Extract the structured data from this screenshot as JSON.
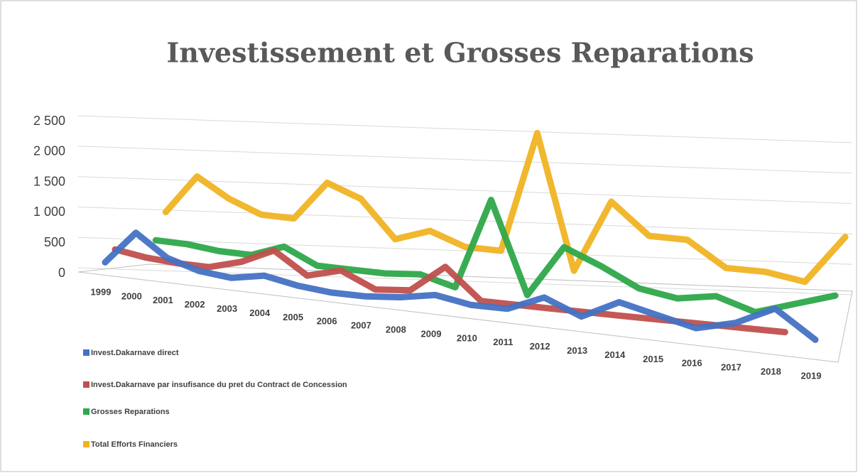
{
  "chart_data": {
    "type": "line3d",
    "title": "Investissement et Grosses Reparations",
    "categories": [
      "1999",
      "2000",
      "2001",
      "2002",
      "2003",
      "2004",
      "2005",
      "2006",
      "2007",
      "2008",
      "2009",
      "2010",
      "2011",
      "2012",
      "2013",
      "2014",
      "2015",
      "2016",
      "2017",
      "2018",
      "2019"
    ],
    "series": [
      {
        "name": "Invest.Dakarnave direct",
        "color": "#4472c4",
        "values": [
          100,
          650,
          300,
          150,
          100,
          200,
          100,
          50,
          50,
          100,
          200,
          100,
          100,
          350,
          100,
          400,
          250,
          100,
          250,
          550,
          100
        ]
      },
      {
        "name": "Invest.Dakarnave par insufisance du pret du Contract de Concession",
        "color": "#c0504d",
        "values": [
          150,
          80,
          50,
          50,
          200,
          450,
          100,
          250,
          0,
          50,
          500,
          0,
          0,
          0,
          0,
          0,
          0,
          0,
          0,
          0,
          null
        ]
      },
      {
        "name": "Grosses Reparations",
        "color": "#2ea84a",
        "values": [
          null,
          200,
          200,
          150,
          150,
          350,
          100,
          100,
          100,
          150,
          0,
          1500,
          0,
          850,
          600,
          300,
          200,
          300,
          100,
          300,
          500
        ]
      },
      {
        "name": "Total Efforts Financiers",
        "color": "#f0b323",
        "values": [
          null,
          500,
          1150,
          850,
          650,
          650,
          1300,
          1100,
          500,
          700,
          500,
          500,
          2500,
          300,
          1500,
          1000,
          1000,
          600,
          600,
          500,
          1300
        ]
      }
    ],
    "ylim": [
      0,
      2500
    ],
    "yticks": [
      0,
      500,
      {
        "value": 1000,
        "label": "1 000"
      },
      {
        "value": 1500,
        "label": "1 500"
      },
      {
        "value": 2000,
        "label": "2 000"
      },
      {
        "value": 2500,
        "label": "2 500"
      }
    ],
    "grid": true,
    "legend": "bottom-left"
  }
}
